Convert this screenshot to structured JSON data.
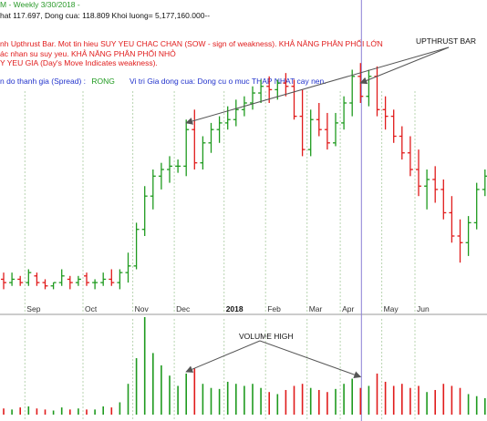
{
  "header": {
    "title": "M - Weekly  3/30/2018 -",
    "line2": "hat 117.697, Dong cua: 118.809  Khoi luong= 5,177,160.000--",
    "line3": "nh Upthrust Bar. Mot tin hieu SUY YEU CHAC CHAN (SOW - sign of weakness). KHẢ NĂNG PHÂN PHỐI LỚN",
    "line4": "ác nhan su suy yeu. KHẢ NĂNG PHÂN PHỐI NHỎ",
    "line5": "Y YEU GIA (Day's Move Indicates weakness).",
    "spread_label": "n do thanh gia (Spread) :",
    "spread_value": "RONG",
    "close_pos_label": "Vi tri Gia dong cua:  Dong cu o muc",
    "close_pos_value": "THAP NHAT cay nen."
  },
  "annotations": {
    "upthrust": "UPTHRUST BAR",
    "volume": "VOLUME HIGH"
  },
  "colors": {
    "up": "#1e9a1e",
    "down": "#e01b1b",
    "grid": "#b8d4b0",
    "marker_line": "#8a7fd6",
    "arrow": "#555555"
  },
  "chart_data": {
    "type": "ohlc-volume",
    "title": "",
    "xlabel": "",
    "ylabel": "",
    "x_labels": [
      "Sep",
      "Oct",
      "Nov",
      "Dec",
      "2018",
      "Feb",
      "Mar",
      "Apr",
      "May",
      "Jun"
    ],
    "price_range": [
      60,
      140
    ],
    "bars": [
      {
        "o": 67,
        "h": 69,
        "l": 64,
        "c": 66,
        "v": 6
      },
      {
        "o": 66,
        "h": 69,
        "l": 65,
        "c": 67,
        "v": 5
      },
      {
        "o": 67,
        "h": 68,
        "l": 65,
        "c": 66,
        "v": 7
      },
      {
        "o": 66,
        "h": 70,
        "l": 65,
        "c": 69,
        "v": 8
      },
      {
        "o": 68,
        "h": 69,
        "l": 65,
        "c": 66,
        "v": 6
      },
      {
        "o": 66,
        "h": 67,
        "l": 64,
        "c": 65,
        "v": 5
      },
      {
        "o": 65,
        "h": 66,
        "l": 64,
        "c": 66,
        "v": 4
      },
      {
        "o": 66,
        "h": 70,
        "l": 65,
        "c": 68,
        "v": 7
      },
      {
        "o": 67,
        "h": 68,
        "l": 64,
        "c": 66,
        "v": 5
      },
      {
        "o": 66,
        "h": 68,
        "l": 65,
        "c": 67,
        "v": 6
      },
      {
        "o": 68,
        "h": 69,
        "l": 65,
        "c": 66,
        "v": 5
      },
      {
        "o": 66,
        "h": 67,
        "l": 64,
        "c": 66,
        "v": 5
      },
      {
        "o": 66,
        "h": 69,
        "l": 65,
        "c": 67,
        "v": 8
      },
      {
        "o": 67,
        "h": 70,
        "l": 65,
        "c": 66,
        "v": 7
      },
      {
        "o": 66,
        "h": 70,
        "l": 64,
        "c": 69,
        "v": 12
      },
      {
        "o": 69,
        "h": 75,
        "l": 66,
        "c": 71,
        "v": 30
      },
      {
        "o": 71,
        "h": 84,
        "l": 70,
        "c": 82,
        "v": 55
      },
      {
        "o": 82,
        "h": 95,
        "l": 80,
        "c": 92,
        "v": 95
      },
      {
        "o": 92,
        "h": 100,
        "l": 88,
        "c": 98,
        "v": 60
      },
      {
        "o": 98,
        "h": 102,
        "l": 94,
        "c": 100,
        "v": 48
      },
      {
        "o": 100,
        "h": 104,
        "l": 96,
        "c": 101,
        "v": 38
      },
      {
        "o": 101,
        "h": 103,
        "l": 99,
        "c": 101,
        "v": 28
      },
      {
        "o": 101,
        "h": 115,
        "l": 98,
        "c": 112,
        "v": 40
      },
      {
        "o": 112,
        "h": 118,
        "l": 100,
        "c": 102,
        "v": 45
      },
      {
        "o": 102,
        "h": 110,
        "l": 100,
        "c": 108,
        "v": 30
      },
      {
        "o": 108,
        "h": 114,
        "l": 105,
        "c": 112,
        "v": 26
      },
      {
        "o": 112,
        "h": 116,
        "l": 108,
        "c": 114,
        "v": 25
      },
      {
        "o": 114,
        "h": 119,
        "l": 112,
        "c": 115,
        "v": 32
      },
      {
        "o": 115,
        "h": 121,
        "l": 113,
        "c": 118,
        "v": 30
      },
      {
        "o": 118,
        "h": 122,
        "l": 116,
        "c": 120,
        "v": 28
      },
      {
        "o": 120,
        "h": 125,
        "l": 118,
        "c": 123,
        "v": 30
      },
      {
        "o": 123,
        "h": 127,
        "l": 120,
        "c": 125,
        "v": 26
      },
      {
        "o": 125,
        "h": 128,
        "l": 120,
        "c": 124,
        "v": 22
      },
      {
        "o": 124,
        "h": 127,
        "l": 121,
        "c": 126,
        "v": 20
      },
      {
        "o": 126,
        "h": 129,
        "l": 122,
        "c": 125,
        "v": 24
      },
      {
        "o": 125,
        "h": 127,
        "l": 115,
        "c": 116,
        "v": 28
      },
      {
        "o": 116,
        "h": 124,
        "l": 104,
        "c": 106,
        "v": 30
      },
      {
        "o": 106,
        "h": 118,
        "l": 104,
        "c": 115,
        "v": 26
      },
      {
        "o": 115,
        "h": 120,
        "l": 110,
        "c": 112,
        "v": 24
      },
      {
        "o": 112,
        "h": 117,
        "l": 106,
        "c": 108,
        "v": 22
      },
      {
        "o": 108,
        "h": 117,
        "l": 107,
        "c": 114,
        "v": 25
      },
      {
        "o": 114,
        "h": 122,
        "l": 112,
        "c": 120,
        "v": 30
      },
      {
        "o": 120,
        "h": 130,
        "l": 116,
        "c": 128,
        "v": 35
      },
      {
        "o": 128,
        "h": 132,
        "l": 120,
        "c": 122,
        "v": 26
      },
      {
        "o": 122,
        "h": 130,
        "l": 119,
        "c": 128,
        "v": 28
      },
      {
        "o": 128,
        "h": 131,
        "l": 116,
        "c": 118,
        "v": 40
      },
      {
        "o": 118,
        "h": 122,
        "l": 112,
        "c": 116,
        "v": 32
      },
      {
        "o": 116,
        "h": 118,
        "l": 108,
        "c": 110,
        "v": 28
      },
      {
        "o": 110,
        "h": 113,
        "l": 103,
        "c": 105,
        "v": 30
      },
      {
        "o": 105,
        "h": 110,
        "l": 98,
        "c": 100,
        "v": 26
      },
      {
        "o": 100,
        "h": 106,
        "l": 92,
        "c": 95,
        "v": 28
      },
      {
        "o": 95,
        "h": 100,
        "l": 88,
        "c": 97,
        "v": 22
      },
      {
        "o": 97,
        "h": 101,
        "l": 90,
        "c": 94,
        "v": 24
      },
      {
        "o": 94,
        "h": 97,
        "l": 85,
        "c": 87,
        "v": 30
      },
      {
        "o": 87,
        "h": 92,
        "l": 78,
        "c": 80,
        "v": 28
      },
      {
        "o": 80,
        "h": 85,
        "l": 72,
        "c": 78,
        "v": 26
      },
      {
        "o": 78,
        "h": 86,
        "l": 74,
        "c": 84,
        "v": 20
      },
      {
        "o": 84,
        "h": 96,
        "l": 82,
        "c": 94,
        "v": 18
      },
      {
        "o": 94,
        "h": 100,
        "l": 92,
        "c": 98,
        "v": 16
      }
    ]
  }
}
